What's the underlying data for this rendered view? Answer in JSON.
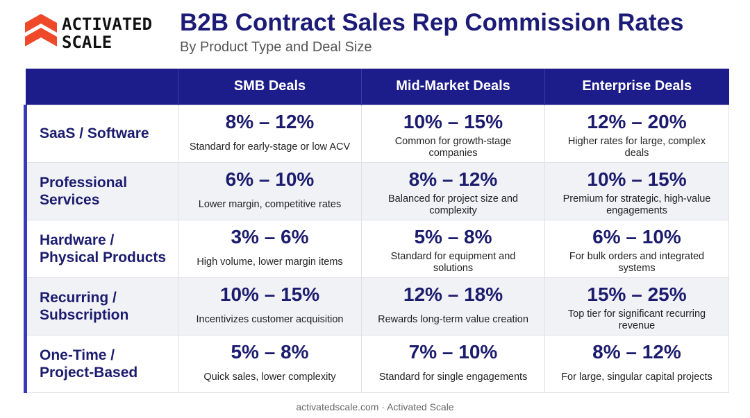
{
  "brand": {
    "logo_text": "ACTIVATED SCALE",
    "logo_color": "#ee4a2a"
  },
  "header": {
    "title": "B2B Contract Sales Rep Commission Rates",
    "subtitle": "By Product Type and Deal Size"
  },
  "chart_data": {
    "type": "table",
    "title": "B2B Contract Sales Rep Commission Rates",
    "subtitle": "By Product Type and Deal Size",
    "columns": [
      "",
      "SMB Deals",
      "Mid-Market Deals",
      "Enterprise Deals"
    ],
    "rows": [
      {
        "label": "SaaS / Software",
        "cells": [
          {
            "rate": "8% – 12%",
            "note": "Standard for early-stage or low ACV"
          },
          {
            "rate": "10% – 15%",
            "note": "Common for growth-stage companies"
          },
          {
            "rate": "12% – 20%",
            "note": "Higher rates for large, complex deals"
          }
        ]
      },
      {
        "label": "Professional Services",
        "cells": [
          {
            "rate": "6% – 10%",
            "note": "Lower margin, competitive rates"
          },
          {
            "rate": "8% – 12%",
            "note": "Balanced for project size and complexity"
          },
          {
            "rate": "10% – 15%",
            "note": "Premium for strategic, high-value engagements"
          }
        ]
      },
      {
        "label": "Hardware / Physical Products",
        "cells": [
          {
            "rate": "3% – 6%",
            "note": "High volume, lower margin items"
          },
          {
            "rate": "5% – 8%",
            "note": "Standard for equipment and solutions"
          },
          {
            "rate": "6% – 10%",
            "note": "For bulk orders and integrated systems"
          }
        ]
      },
      {
        "label": "Recurring / Subscription",
        "cells": [
          {
            "rate": "10% – 15%",
            "note": "Incentivizes customer acquisition"
          },
          {
            "rate": "12% – 18%",
            "note": "Rewards long-term value creation"
          },
          {
            "rate": "15% – 25%",
            "note": "Top tier for significant recurring revenue"
          }
        ]
      },
      {
        "label": "One-Time / Project-Based",
        "cells": [
          {
            "rate": "5% – 8%",
            "note": "Quick sales, lower complexity"
          },
          {
            "rate": "7% – 10%",
            "note": "Standard for single engagements"
          },
          {
            "rate": "8% – 12%",
            "note": "For large, singular capital projects"
          }
        ]
      }
    ]
  },
  "footer": {
    "text": "activatedscale.com · Activated Scale"
  },
  "colors": {
    "header_bg": "#1c1c8a",
    "accent": "#3a3ab8",
    "text": "#1c1c6e",
    "alt_row": "#f1f2f6"
  }
}
